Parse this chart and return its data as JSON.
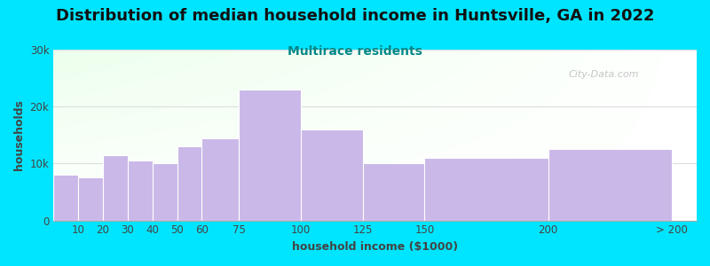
{
  "title": "Distribution of median household income in Huntsville, GA in 2022",
  "subtitle": "Multirace residents",
  "xlabel": "household income ($1000)",
  "ylabel": "households",
  "bar_lefts": [
    0,
    10,
    20,
    30,
    40,
    50,
    60,
    75,
    100,
    125,
    150,
    200
  ],
  "bar_widths": [
    10,
    10,
    10,
    10,
    10,
    10,
    15,
    25,
    25,
    25,
    50,
    50
  ],
  "bar_values": [
    8000,
    7500,
    11500,
    10500,
    10000,
    13000,
    14500,
    23000,
    16000,
    10000,
    11000,
    12500
  ],
  "bar_color": "#c9b8e8",
  "bar_edge_color": "#ffffff",
  "background_color": "#00e5ff",
  "ylim": [
    0,
    30000
  ],
  "yticks": [
    0,
    10000,
    20000,
    30000
  ],
  "ytick_labels": [
    "0",
    "10k",
    "20k",
    "30k"
  ],
  "xtick_positions": [
    10,
    20,
    30,
    40,
    50,
    60,
    75,
    100,
    125,
    150,
    200,
    250
  ],
  "xtick_labels": [
    "10",
    "20",
    "30",
    "40",
    "50",
    "60",
    "75",
    "100",
    "125",
    "150",
    "200",
    "> 200"
  ],
  "xlim": [
    0,
    260
  ],
  "title_fontsize": 13,
  "subtitle_fontsize": 10,
  "subtitle_color": "#008888",
  "axis_label_fontsize": 9,
  "watermark_text": "City-Data.com",
  "grid_color": "#dddddd",
  "text_color": "#444444"
}
